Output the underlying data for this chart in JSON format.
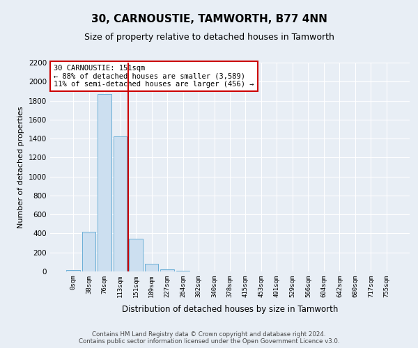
{
  "title": "30, CARNOUSTIE, TAMWORTH, B77 4NN",
  "subtitle": "Size of property relative to detached houses in Tamworth",
  "xlabel": "Distribution of detached houses by size in Tamworth",
  "ylabel": "Number of detached properties",
  "bar_color": "#ccdff0",
  "bar_edge_color": "#6aaed6",
  "vline_color": "#cc0000",
  "annotation_line1": "30 CARNOUSTIE: 151sqm",
  "annotation_line2": "← 88% of detached houses are smaller (3,589)",
  "annotation_line3": "11% of semi-detached houses are larger (456) →",
  "categories": [
    "0sqm",
    "38sqm",
    "76sqm",
    "113sqm",
    "151sqm",
    "189sqm",
    "227sqm",
    "264sqm",
    "302sqm",
    "340sqm",
    "378sqm",
    "415sqm",
    "453sqm",
    "491sqm",
    "529sqm",
    "566sqm",
    "604sqm",
    "642sqm",
    "680sqm",
    "717sqm",
    "755sqm"
  ],
  "values": [
    18,
    420,
    1870,
    1420,
    345,
    78,
    22,
    8,
    3,
    1,
    0,
    0,
    0,
    0,
    0,
    0,
    0,
    0,
    0,
    0,
    0
  ],
  "ylim": [
    0,
    2200
  ],
  "yticks": [
    0,
    200,
    400,
    600,
    800,
    1000,
    1200,
    1400,
    1600,
    1800,
    2000,
    2200
  ],
  "footer_line1": "Contains HM Land Registry data © Crown copyright and database right 2024.",
  "footer_line2": "Contains public sector information licensed under the Open Government Licence v3.0.",
  "background_color": "#e8eef5",
  "plot_bg_color": "#e8eef5",
  "grid_color": "#ffffff",
  "annotation_box_color": "#ffffff",
  "annotation_box_edge": "#cc0000",
  "title_fontsize": 11,
  "subtitle_fontsize": 9
}
